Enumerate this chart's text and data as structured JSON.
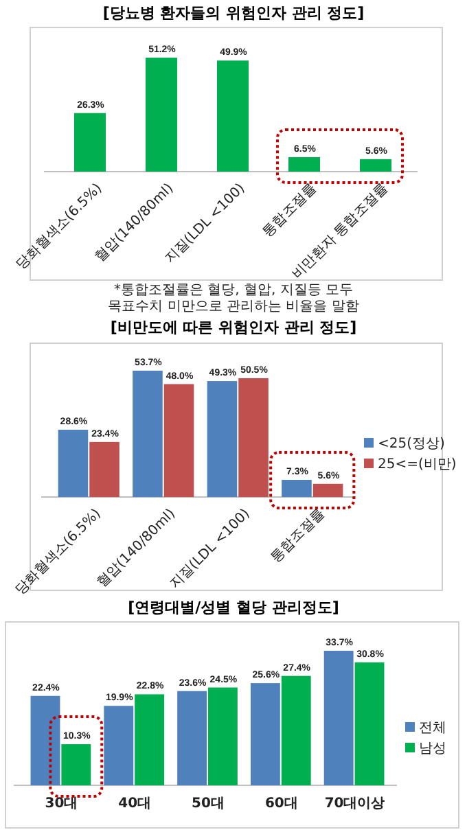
{
  "chart_data": [
    {
      "type": "bar",
      "title": "[당뇨병 환자들의 위험인자 관리 정도]",
      "categories": [
        "당화혈색소(6.5%)",
        "혈압(140/80ml)",
        "지질(LDL <100)",
        "통합조절률",
        "비만환자 통합조절률"
      ],
      "series": [
        {
          "color": "#00b050",
          "values": [
            26.3,
            51.2,
            49.9,
            6.5,
            5.6
          ],
          "value_labels": [
            "26.3%",
            "51.2%",
            "49.9%",
            "6.5%",
            "5.6%"
          ]
        }
      ],
      "annotations": [
        "*통합조절률은 혈당, 혈압, 지질등 모두 목표수치 미만으로 관리하는 비율을 말함"
      ]
    },
    {
      "type": "bar",
      "title": "[비만도에 따른 위험인자 관리 정도]",
      "categories": [
        "당화혈색소(6.5%)",
        "혈압(140/80ml)",
        "지질(LDL <100)",
        "통합조절률"
      ],
      "legend": "right",
      "series": [
        {
          "name": "<25(정상)",
          "color": "#4f81bd",
          "values": [
            28.6,
            53.7,
            49.3,
            7.3
          ],
          "value_labels": [
            "28.6%",
            "53.7%",
            "49.3%",
            "7.3%"
          ]
        },
        {
          "name": "25<=(비만)",
          "color": "#c0504d",
          "values": [
            23.4,
            48.0,
            50.5,
            5.6
          ],
          "value_labels": [
            "23.4%",
            "48.0%",
            "50.5%",
            "5.6%"
          ]
        }
      ]
    },
    {
      "type": "bar",
      "title": "[연령대별/성별 혈당 관리정도]",
      "categories": [
        "30대",
        "40대",
        "50대",
        "60대",
        "70대이상"
      ],
      "legend": "right",
      "series": [
        {
          "name": "전체",
          "color": "#4f81bd",
          "values": [
            22.4,
            19.9,
            23.6,
            25.6,
            33.7
          ],
          "value_labels": [
            "22.4%",
            "19.9%",
            "23.6%",
            "25.6%",
            "33.7%"
          ]
        },
        {
          "name": "남성",
          "color": "#00b050",
          "values": [
            10.3,
            22.8,
            24.5,
            27.4,
            30.8
          ],
          "value_labels": [
            "10.3%",
            "22.8%",
            "24.5%",
            "27.4%",
            "30.8%"
          ]
        }
      ]
    }
  ]
}
